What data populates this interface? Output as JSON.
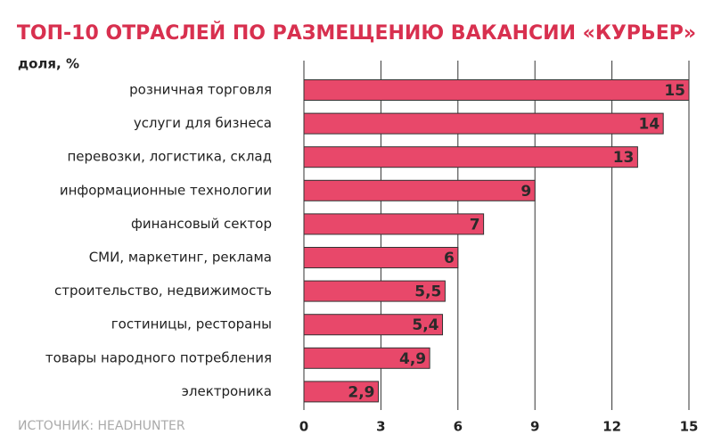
{
  "chart_data": {
    "type": "hbar",
    "title": "ТОП-10 ОТРАСЛЕЙ ПО РАЗМЕЩЕНИЮ ВАКАНСИИ «КУРЬЕР»",
    "value_axis_label": "доля, %",
    "source": "ИСТОЧНИК: HEADHUNTER",
    "categories": [
      "розничная торговля",
      "услуги для бизнеса",
      "перевозки, логистика, склад",
      "информационные технологии",
      "финансовый сектор",
      "СМИ, маркетинг, реклама",
      "строительство, недвижимость",
      "гостиницы, рестораны",
      "товары народного потребления",
      "электроника"
    ],
    "values": [
      15,
      14,
      13,
      9,
      7,
      6,
      5.5,
      5.4,
      4.9,
      2.9
    ],
    "value_labels": [
      "15",
      "14",
      "13",
      "9",
      "7",
      "6",
      "5,5",
      "5,4",
      "4,9",
      "2,9"
    ],
    "color": "#e8486a",
    "xlim": [
      0,
      15
    ],
    "xticks": [
      0,
      3,
      6,
      9,
      12,
      15
    ],
    "grid": true
  }
}
